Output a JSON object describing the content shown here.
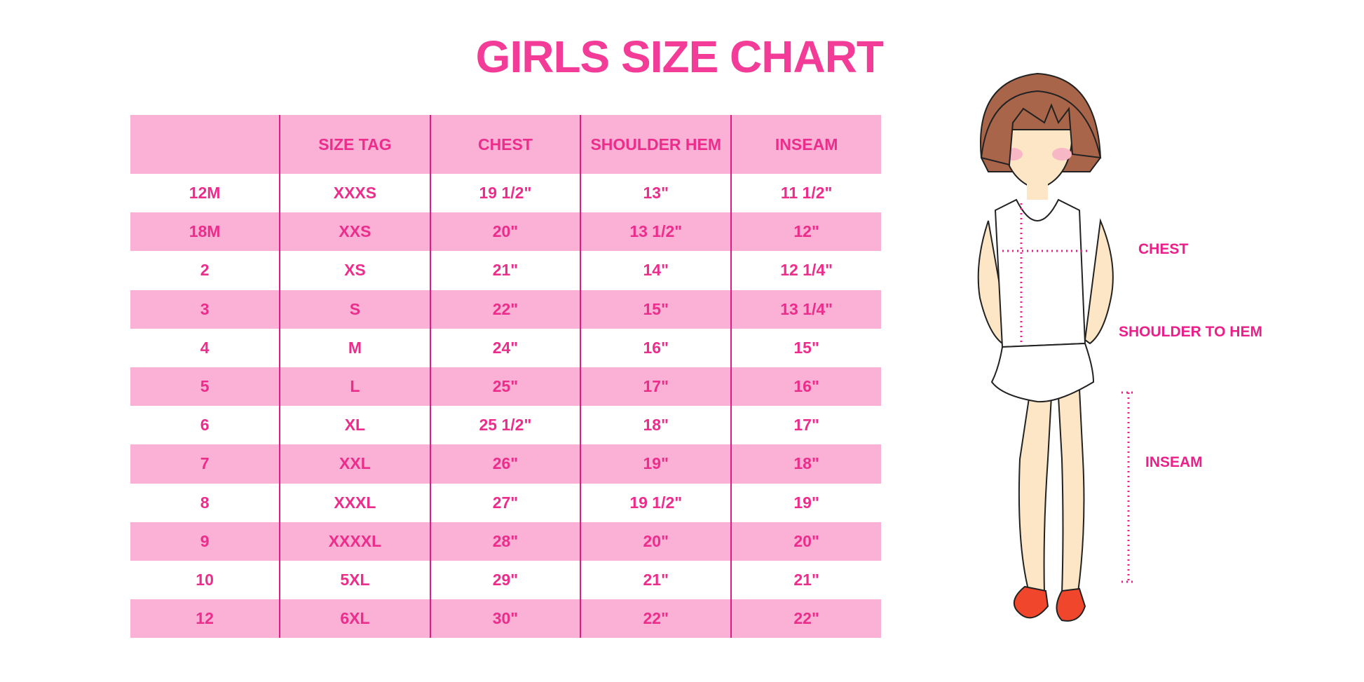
{
  "title": "GIRLS SIZE CHART",
  "table": {
    "headers": [
      "",
      "SIZE TAG",
      "CHEST",
      "SHOULDER HEM",
      "INSEAM"
    ],
    "rows": [
      [
        "12M",
        "XXXS",
        "19 1/2\"",
        "13\"",
        "11 1/2\""
      ],
      [
        "18M",
        "XXS",
        "20\"",
        "13 1/2\"",
        "12\""
      ],
      [
        "2",
        "XS",
        "21\"",
        "14\"",
        "12 1/4\""
      ],
      [
        "3",
        "S",
        "22\"",
        "15\"",
        "13 1/4\""
      ],
      [
        "4",
        "M",
        "24\"",
        "16\"",
        "15\""
      ],
      [
        "5",
        "L",
        "25\"",
        "17\"",
        "16\""
      ],
      [
        "6",
        "XL",
        "25 1/2\"",
        "18\"",
        "17\""
      ],
      [
        "7",
        "XXL",
        "26\"",
        "19\"",
        "18\""
      ],
      [
        "8",
        "XXXL",
        "27\"",
        "19 1/2\"",
        "19\""
      ],
      [
        "9",
        "XXXXL",
        "28\"",
        "20\"",
        "20\""
      ],
      [
        "10",
        "5XL",
        "29\"",
        "21\"",
        "21\""
      ],
      [
        "12",
        "6XL",
        "30\"",
        "22\"",
        "22\""
      ]
    ]
  },
  "figure": {
    "labels": {
      "chest": "CHEST",
      "shoulder_to_hem": "SHOULDER TO HEM",
      "inseam": "INSEAM"
    }
  },
  "colors": {
    "accent": "#f23c98",
    "row_fill": "#fbb0d5",
    "divider": "#e21a86"
  }
}
